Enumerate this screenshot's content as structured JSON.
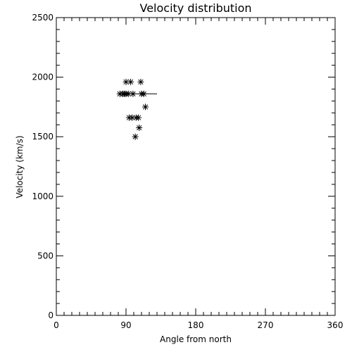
{
  "chart_data": {
    "type": "scatter",
    "title": "Velocity distribution",
    "xlabel": "Angle from north",
    "ylabel": "Velocity (km/s)",
    "xlim": [
      0,
      360
    ],
    "ylim": [
      0,
      2500
    ],
    "x_major_ticks": [
      0,
      90,
      180,
      270,
      360
    ],
    "x_tick_labels": [
      "0",
      "90",
      "180",
      "270",
      "360"
    ],
    "x_minor_step": 10,
    "y_major_ticks": [
      0,
      500,
      1000,
      1500,
      2000,
      2500
    ],
    "y_tick_labels": [
      "0",
      "500",
      "1000",
      "1500",
      "2000",
      "2500"
    ],
    "y_minor_step": 100,
    "marker": "asterisk",
    "grid": false,
    "points": [
      {
        "x": 90,
        "y": 1960
      },
      {
        "x": 96,
        "y": 1960
      },
      {
        "x": 109,
        "y": 1960
      },
      {
        "x": 82,
        "y": 1860
      },
      {
        "x": 86,
        "y": 1860
      },
      {
        "x": 88,
        "y": 1860
      },
      {
        "x": 90,
        "y": 1860
      },
      {
        "x": 93,
        "y": 1860
      },
      {
        "x": 99,
        "y": 1860
      },
      {
        "x": 110,
        "y": 1860
      },
      {
        "x": 113,
        "y": 1860
      },
      {
        "x": 115,
        "y": 1750
      },
      {
        "x": 94,
        "y": 1660
      },
      {
        "x": 98,
        "y": 1660
      },
      {
        "x": 103,
        "y": 1660
      },
      {
        "x": 106,
        "y": 1660
      },
      {
        "x": 107,
        "y": 1575
      },
      {
        "x": 102,
        "y": 1500
      }
    ],
    "reference_line": {
      "x_start": 82,
      "x_end": 130,
      "y": 1860
    }
  }
}
